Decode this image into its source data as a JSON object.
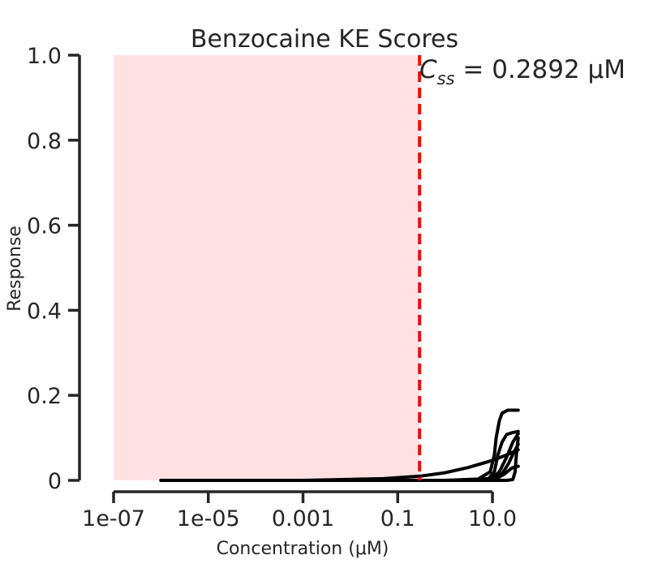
{
  "chart_data": {
    "type": "line",
    "title": "Benzocaine KE Scores",
    "xlabel": "Concentration (μM)",
    "ylabel": "Response",
    "x_scale": "log",
    "xlim": [
      1e-07,
      38
    ],
    "ylim": [
      0,
      1.0
    ],
    "x_ticks": [
      1e-07,
      1e-05,
      0.001,
      0.1,
      10.0
    ],
    "x_tick_labels": [
      "1e-07",
      "1e-05",
      "0.001",
      "0.1",
      "10.0"
    ],
    "y_ticks": [
      0,
      0.2,
      0.4,
      0.6,
      0.8,
      1.0
    ],
    "y_tick_labels": [
      "0",
      "0.2",
      "0.4",
      "0.6",
      "0.8",
      "1.0"
    ],
    "grid": false,
    "shaded_region": {
      "x_from": 1e-07,
      "x_to": 0.2892,
      "color": "#ffe1e4"
    },
    "vline": {
      "x": 0.2892,
      "color": "#e8120c",
      "style": "dashed"
    },
    "annotation": {
      "prefix": "C",
      "subscript": "ss",
      "text": " = 0.2892 μM"
    },
    "series": [
      {
        "points": [
          [
            1e-06,
            0
          ],
          [
            0.001,
            0
          ],
          [
            0.05,
            0.004
          ],
          [
            0.3,
            0.01
          ],
          [
            1,
            0.018
          ],
          [
            3,
            0.03
          ],
          [
            10,
            0.047
          ],
          [
            20,
            0.06
          ],
          [
            35,
            0.072
          ]
        ]
      },
      {
        "points": [
          [
            1e-06,
            0
          ],
          [
            1,
            0
          ],
          [
            5,
            0.003
          ],
          [
            9,
            0.02
          ],
          [
            11,
            0.06
          ],
          [
            12,
            0.1
          ],
          [
            14,
            0.14
          ],
          [
            16,
            0.158
          ],
          [
            21,
            0.165
          ],
          [
            35,
            0.165
          ]
        ]
      },
      {
        "points": [
          [
            1e-06,
            0
          ],
          [
            2,
            0
          ],
          [
            8,
            0.002
          ],
          [
            11,
            0.02
          ],
          [
            13,
            0.06
          ],
          [
            16,
            0.09
          ],
          [
            20,
            0.108
          ],
          [
            26,
            0.112
          ],
          [
            35,
            0.115
          ]
        ]
      },
      {
        "points": [
          [
            1e-06,
            0
          ],
          [
            3,
            0
          ],
          [
            10,
            0.005
          ],
          [
            14,
            0.02
          ],
          [
            20,
            0.055
          ],
          [
            27,
            0.09
          ],
          [
            35,
            0.11
          ]
        ]
      },
      {
        "points": [
          [
            1e-06,
            0
          ],
          [
            3,
            0
          ],
          [
            10,
            0.003
          ],
          [
            16,
            0.015
          ],
          [
            22,
            0.04
          ],
          [
            28,
            0.065
          ],
          [
            35,
            0.085
          ]
        ]
      },
      {
        "points": [
          [
            1e-06,
            0
          ],
          [
            5,
            0
          ],
          [
            12,
            0.004
          ],
          [
            18,
            0.015
          ],
          [
            25,
            0.028
          ],
          [
            30,
            0.032
          ],
          [
            35,
            0.033
          ]
        ]
      },
      {
        "points": [
          [
            1e-06,
            0
          ],
          [
            5,
            0
          ],
          [
            20,
            0
          ],
          [
            27,
            0.002
          ],
          [
            30,
            0.02
          ],
          [
            32,
            0.06
          ],
          [
            35,
            0.1
          ]
        ]
      }
    ],
    "line_color": "#000000",
    "axis_color": "#262626"
  }
}
